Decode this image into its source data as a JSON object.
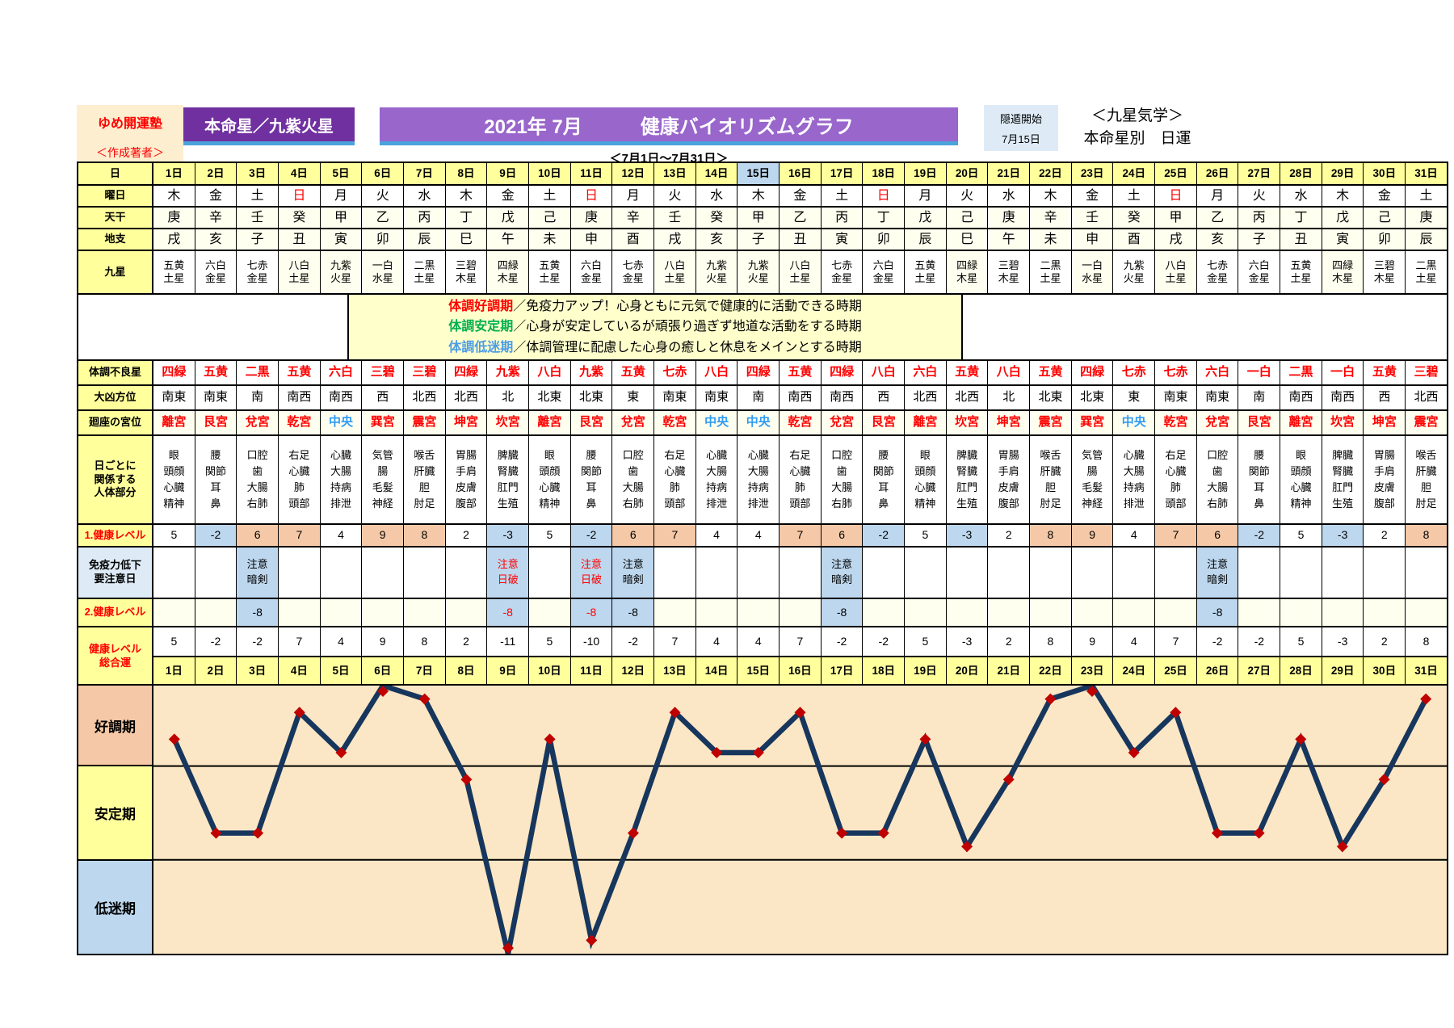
{
  "header": {
    "brand": "ゆめ開運塾",
    "brand_sub": "＜作成著者＞",
    "honmei_box": "本命星／九紫火星",
    "title": "2021年 7月　　　健康バイオリズムグラフ",
    "inton_label": "隠遁開始",
    "inton_date": "7月15日",
    "right_line1": "＜九星気学＞",
    "right_line2": "本命星別　日運",
    "period": "＜7月1日～7月31日＞"
  },
  "row_labels": {
    "day": "日",
    "weekday": "曜日",
    "tenkan": "天干",
    "chishi": "地支",
    "kyusei": "九星",
    "bad_star": "体調不良星",
    "bad_direction": "大凶方位",
    "palace": "廻座の宮位",
    "body": "日ごとに\n関係する\n人体部分",
    "health1": "1.健康レベル",
    "caution": "免疫力低下\n要注意日",
    "health2": "2.健康レベル",
    "total": "健康レベル\n総合運"
  },
  "legend": [
    {
      "term": "体調好調期",
      "color": "#FF0000",
      "desc": "／免疫力アップ！心身ともに元気で健康的に活動できる時期"
    },
    {
      "term": "体調安定期",
      "color": "#00B050",
      "desc": "／心身が安定しているが頑張り過ぎず地道な活動をする時期"
    },
    {
      "term": "体調低迷期",
      "color": "#4D9CE8",
      "desc": "／体調管理に配慮した心身の癒しと休息をメインとする時期"
    }
  ],
  "zones": [
    {
      "label": "好調期",
      "color": "#F5C9A7"
    },
    {
      "label": "安定期",
      "color": "#FFFF9C"
    },
    {
      "label": "低迷期",
      "color": "#BDD7EE"
    }
  ],
  "colors": {
    "yellow": "#FFFF9C",
    "ivory": "#FFFFEF",
    "highlight": "#BDD7EE",
    "salmon": "#F5C9A7",
    "caution_bg": "#BDD7EE",
    "label_blue": "#DEEBF7",
    "red": "#FF0000",
    "center_blue": "#2F9BF5",
    "purple_dark": "#7030A0",
    "purple_light": "#9966CC",
    "strip_blue": "#4BA3DB",
    "line": "#17365D",
    "marker": "#C00000",
    "plot_bg": "#FBE7C5",
    "cream": "#FDEECF",
    "white": "#FFFFFF"
  },
  "days": [
    {
      "n": 1,
      "date": "1日",
      "w": "木",
      "sun": false,
      "stem": "庚",
      "branch": "戌",
      "star": "五黄\n土星",
      "star_hl": false,
      "bad": "四緑",
      "dir": "南東",
      "palace": "離宮",
      "center": false,
      "body": "眼\n頭顔\n心臓\n精神",
      "h1": 5,
      "caution": "",
      "caution_red": false,
      "h2": null,
      "total": 5
    },
    {
      "n": 2,
      "date": "2日",
      "w": "金",
      "sun": false,
      "stem": "辛",
      "branch": "亥",
      "star": "六白\n金星",
      "star_hl": false,
      "bad": "五黄",
      "dir": "南東",
      "palace": "艮宮",
      "center": false,
      "body": "腰\n関節\n耳\n鼻",
      "h1": -2,
      "caution": "",
      "caution_red": false,
      "h2": null,
      "total": -2
    },
    {
      "n": 3,
      "date": "3日",
      "w": "土",
      "sun": false,
      "stem": "壬",
      "branch": "子",
      "star": "七赤\n金星",
      "star_hl": false,
      "bad": "二黒",
      "dir": "南",
      "palace": "兌宮",
      "center": false,
      "body": "口腔\n歯\n大腸\n右肺",
      "h1": 6,
      "caution": "注意\n暗剣",
      "caution_red": false,
      "h2": -8,
      "total": -2
    },
    {
      "n": 4,
      "date": "4日",
      "w": "日",
      "sun": true,
      "stem": "癸",
      "branch": "丑",
      "star": "八白\n土星",
      "star_hl": true,
      "bad": "五黄",
      "dir": "南西",
      "palace": "乾宮",
      "center": false,
      "body": "右足\n心臓\n肺\n頭部",
      "h1": 7,
      "caution": "",
      "caution_red": false,
      "h2": null,
      "total": 7
    },
    {
      "n": 5,
      "date": "5日",
      "w": "月",
      "sun": false,
      "stem": "甲",
      "branch": "寅",
      "star": "九紫\n火星",
      "star_hl": true,
      "bad": "六白",
      "dir": "南西",
      "palace": "中央",
      "center": true,
      "body": "心臓\n大腸\n持病\n排泄",
      "h1": 4,
      "caution": "",
      "caution_red": false,
      "h2": null,
      "total": 4
    },
    {
      "n": 6,
      "date": "6日",
      "w": "火",
      "sun": false,
      "stem": "乙",
      "branch": "卯",
      "star": "一白\n水星",
      "star_hl": true,
      "bad": "三碧",
      "dir": "西",
      "palace": "巽宮",
      "center": false,
      "body": "気管\n腸\n毛髪\n神経",
      "h1": 9,
      "caution": "",
      "caution_red": false,
      "h2": null,
      "total": 9
    },
    {
      "n": 7,
      "date": "7日",
      "w": "水",
      "sun": false,
      "stem": "丙",
      "branch": "辰",
      "star": "二黒\n土星",
      "star_hl": false,
      "bad": "三碧",
      "dir": "北西",
      "palace": "震宮",
      "center": false,
      "body": "喉舌\n肝臓\n胆\n肘足",
      "h1": 8,
      "caution": "",
      "caution_red": false,
      "h2": null,
      "total": 8
    },
    {
      "n": 8,
      "date": "8日",
      "w": "木",
      "sun": false,
      "stem": "丁",
      "branch": "巳",
      "star": "三碧\n木星",
      "star_hl": false,
      "bad": "四緑",
      "dir": "北西",
      "palace": "坤宮",
      "center": false,
      "body": "胃腸\n手肩\n皮膚\n腹部",
      "h1": 2,
      "caution": "",
      "caution_red": false,
      "h2": null,
      "total": 2
    },
    {
      "n": 9,
      "date": "9日",
      "w": "金",
      "sun": false,
      "stem": "戊",
      "branch": "午",
      "star": "四緑\n木星",
      "star_hl": true,
      "bad": "九紫",
      "dir": "北",
      "palace": "坎宮",
      "center": false,
      "body": "脾臓\n腎臓\n肛門\n生殖",
      "h1": -3,
      "caution": "注意\n日破",
      "caution_red": true,
      "h2": -8,
      "total": -11
    },
    {
      "n": 10,
      "date": "10日",
      "w": "土",
      "sun": false,
      "stem": "己",
      "branch": "未",
      "star": "五黄\n土星",
      "star_hl": false,
      "bad": "八白",
      "dir": "北東",
      "palace": "離宮",
      "center": false,
      "body": "眼\n頭顔\n心臓\n精神",
      "h1": 5,
      "caution": "",
      "caution_red": false,
      "h2": null,
      "total": 5
    },
    {
      "n": 11,
      "date": "11日",
      "w": "日",
      "sun": true,
      "stem": "庚",
      "branch": "申",
      "star": "六白\n金星",
      "star_hl": false,
      "bad": "九紫",
      "dir": "北東",
      "palace": "艮宮",
      "center": false,
      "body": "腰\n関節\n耳\n鼻",
      "h1": -2,
      "caution": "注意\n日破",
      "caution_red": true,
      "h2": -8,
      "total": -10
    },
    {
      "n": 12,
      "date": "12日",
      "w": "月",
      "sun": false,
      "stem": "辛",
      "branch": "酉",
      "star": "七赤\n金星",
      "star_hl": false,
      "bad": "五黄",
      "dir": "東",
      "palace": "兌宮",
      "center": false,
      "body": "口腔\n歯\n大腸\n右肺",
      "h1": 6,
      "caution": "注意\n暗剣",
      "caution_red": false,
      "h2": -8,
      "total": -2
    },
    {
      "n": 13,
      "date": "13日",
      "w": "火",
      "sun": false,
      "stem": "壬",
      "branch": "戌",
      "star": "八白\n土星",
      "star_hl": true,
      "bad": "七赤",
      "dir": "南東",
      "palace": "乾宮",
      "center": false,
      "body": "右足\n心臓\n肺\n頭部",
      "h1": 7,
      "caution": "",
      "caution_red": false,
      "h2": null,
      "total": 7
    },
    {
      "n": 14,
      "date": "14日",
      "w": "水",
      "sun": false,
      "stem": "癸",
      "branch": "亥",
      "star": "九紫\n火星",
      "star_hl": true,
      "bad": "八白",
      "dir": "南東",
      "palace": "中央",
      "center": true,
      "body": "心臓\n大腸\n持病\n排泄",
      "h1": 4,
      "caution": "",
      "caution_red": false,
      "h2": null,
      "total": 4
    },
    {
      "n": 15,
      "date": "15日",
      "w": "木",
      "sun": false,
      "stem": "甲",
      "branch": "子",
      "star": "九紫\n火星",
      "star_hl": true,
      "bad": "四緑",
      "dir": "南",
      "palace": "中央",
      "center": true,
      "body": "心臓\n大腸\n持病\n排泄",
      "h1": 4,
      "caution": "",
      "caution_red": false,
      "h2": null,
      "total": 4
    },
    {
      "n": 16,
      "date": "16日",
      "w": "金",
      "sun": false,
      "stem": "乙",
      "branch": "丑",
      "star": "八白\n土星",
      "star_hl": true,
      "bad": "五黄",
      "dir": "南西",
      "palace": "乾宮",
      "center": false,
      "body": "右足\n心臓\n肺\n頭部",
      "h1": 7,
      "caution": "",
      "caution_red": false,
      "h2": null,
      "total": 7
    },
    {
      "n": 17,
      "date": "17日",
      "w": "土",
      "sun": false,
      "stem": "丙",
      "branch": "寅",
      "star": "七赤\n金星",
      "star_hl": false,
      "bad": "四緑",
      "dir": "南西",
      "palace": "兌宮",
      "center": false,
      "body": "口腔\n歯\n大腸\n右肺",
      "h1": 6,
      "caution": "注意\n暗剣",
      "caution_red": false,
      "h2": -8,
      "total": -2
    },
    {
      "n": 18,
      "date": "18日",
      "w": "日",
      "sun": true,
      "stem": "丁",
      "branch": "卯",
      "star": "六白\n金星",
      "star_hl": false,
      "bad": "八白",
      "dir": "西",
      "palace": "艮宮",
      "center": false,
      "body": "腰\n関節\n耳\n鼻",
      "h1": -2,
      "caution": "",
      "caution_red": false,
      "h2": null,
      "total": -2
    },
    {
      "n": 19,
      "date": "19日",
      "w": "月",
      "sun": false,
      "stem": "戊",
      "branch": "辰",
      "star": "五黄\n土星",
      "star_hl": false,
      "bad": "六白",
      "dir": "北西",
      "palace": "離宮",
      "center": false,
      "body": "眼\n頭顔\n心臓\n精神",
      "h1": 5,
      "caution": "",
      "caution_red": false,
      "h2": null,
      "total": 5
    },
    {
      "n": 20,
      "date": "20日",
      "w": "火",
      "sun": false,
      "stem": "己",
      "branch": "巳",
      "star": "四緑\n木星",
      "star_hl": true,
      "bad": "五黄",
      "dir": "北西",
      "palace": "坎宮",
      "center": false,
      "body": "脾臓\n腎臓\n肛門\n生殖",
      "h1": -3,
      "caution": "",
      "caution_red": false,
      "h2": null,
      "total": -3
    },
    {
      "n": 21,
      "date": "21日",
      "w": "水",
      "sun": false,
      "stem": "庚",
      "branch": "午",
      "star": "三碧\n木星",
      "star_hl": false,
      "bad": "八白",
      "dir": "北",
      "palace": "坤宮",
      "center": false,
      "body": "胃腸\n手肩\n皮膚\n腹部",
      "h1": 2,
      "caution": "",
      "caution_red": false,
      "h2": null,
      "total": 2
    },
    {
      "n": 22,
      "date": "22日",
      "w": "木",
      "sun": false,
      "stem": "辛",
      "branch": "未",
      "star": "二黒\n土星",
      "star_hl": false,
      "bad": "五黄",
      "dir": "北東",
      "palace": "震宮",
      "center": false,
      "body": "喉舌\n肝臓\n胆\n肘足",
      "h1": 8,
      "caution": "",
      "caution_red": false,
      "h2": null,
      "total": 8
    },
    {
      "n": 23,
      "date": "23日",
      "w": "金",
      "sun": false,
      "stem": "壬",
      "branch": "申",
      "star": "一白\n水星",
      "star_hl": true,
      "bad": "四緑",
      "dir": "北東",
      "palace": "巽宮",
      "center": false,
      "body": "気管\n腸\n毛髪\n神経",
      "h1": 9,
      "caution": "",
      "caution_red": false,
      "h2": null,
      "total": 9
    },
    {
      "n": 24,
      "date": "24日",
      "w": "土",
      "sun": false,
      "stem": "癸",
      "branch": "酉",
      "star": "九紫\n火星",
      "star_hl": false,
      "bad": "七赤",
      "dir": "東",
      "palace": "中央",
      "center": true,
      "body": "心臓\n大腸\n持病\n排泄",
      "h1": 4,
      "caution": "",
      "caution_red": false,
      "h2": null,
      "total": 4
    },
    {
      "n": 25,
      "date": "25日",
      "w": "日",
      "sun": true,
      "stem": "甲",
      "branch": "戌",
      "star": "八白\n土星",
      "star_hl": true,
      "bad": "七赤",
      "dir": "南東",
      "palace": "乾宮",
      "center": false,
      "body": "右足\n心臓\n肺\n頭部",
      "h1": 7,
      "caution": "",
      "caution_red": false,
      "h2": null,
      "total": 7
    },
    {
      "n": 26,
      "date": "26日",
      "w": "月",
      "sun": false,
      "stem": "乙",
      "branch": "亥",
      "star": "七赤\n金星",
      "star_hl": false,
      "bad": "六白",
      "dir": "南東",
      "palace": "兌宮",
      "center": false,
      "body": "口腔\n歯\n大腸\n右肺",
      "h1": 6,
      "caution": "注意\n暗剣",
      "caution_red": false,
      "h2": -8,
      "total": -2
    },
    {
      "n": 27,
      "date": "27日",
      "w": "火",
      "sun": false,
      "stem": "丙",
      "branch": "子",
      "star": "六白\n金星",
      "star_hl": false,
      "bad": "一白",
      "dir": "南",
      "palace": "艮宮",
      "center": false,
      "body": "腰\n関節\n耳\n鼻",
      "h1": -2,
      "caution": "",
      "caution_red": false,
      "h2": null,
      "total": -2
    },
    {
      "n": 28,
      "date": "28日",
      "w": "水",
      "sun": false,
      "stem": "丁",
      "branch": "丑",
      "star": "五黄\n土星",
      "star_hl": false,
      "bad": "二黒",
      "dir": "南西",
      "palace": "離宮",
      "center": false,
      "body": "眼\n頭顔\n心臓\n精神",
      "h1": 5,
      "caution": "",
      "caution_red": false,
      "h2": null,
      "total": 5
    },
    {
      "n": 29,
      "date": "29日",
      "w": "木",
      "sun": false,
      "stem": "戊",
      "branch": "寅",
      "star": "四緑\n木星",
      "star_hl": true,
      "bad": "一白",
      "dir": "南西",
      "palace": "坎宮",
      "center": false,
      "body": "脾臓\n腎臓\n肛門\n生殖",
      "h1": -3,
      "caution": "",
      "caution_red": false,
      "h2": null,
      "total": -3
    },
    {
      "n": 30,
      "date": "30日",
      "w": "金",
      "sun": false,
      "stem": "己",
      "branch": "卯",
      "star": "三碧\n木星",
      "star_hl": false,
      "bad": "五黄",
      "dir": "西",
      "palace": "坤宮",
      "center": false,
      "body": "胃腸\n手肩\n皮膚\n腹部",
      "h1": 2,
      "caution": "",
      "caution_red": false,
      "h2": null,
      "total": 2
    },
    {
      "n": 31,
      "date": "31日",
      "w": "土",
      "sun": false,
      "stem": "庚",
      "branch": "辰",
      "star": "二黒\n土星",
      "star_hl": false,
      "bad": "三碧",
      "dir": "北西",
      "palace": "震宮",
      "center": false,
      "body": "喉舌\n肝臓\n胆\n肘足",
      "h1": 8,
      "caution": "",
      "caution_red": false,
      "h2": null,
      "total": 8
    }
  ],
  "chart_data": {
    "type": "line",
    "title": "健康バイオリズムグラフ 2021年7月 健康レベル総合運",
    "x": [
      1,
      2,
      3,
      4,
      5,
      6,
      7,
      8,
      9,
      10,
      11,
      12,
      13,
      14,
      15,
      16,
      17,
      18,
      19,
      20,
      21,
      22,
      23,
      24,
      25,
      26,
      27,
      28,
      29,
      30,
      31
    ],
    "series": [
      {
        "name": "健康レベル総合運",
        "values": [
          5,
          -2,
          -2,
          7,
          4,
          9,
          8,
          2,
          -11,
          5,
          -10,
          -2,
          7,
          4,
          4,
          7,
          -2,
          -2,
          5,
          -3,
          2,
          8,
          9,
          4,
          7,
          -2,
          -2,
          5,
          -3,
          2,
          8
        ]
      }
    ],
    "ylim": [
      -11,
      9
    ],
    "zone_boundaries": [
      3,
      -4
    ],
    "zone_labels": [
      "好調期",
      "安定期",
      "低迷期"
    ],
    "grid": "zone-bands-only",
    "legend_position": "none",
    "line_color": "#17365D",
    "marker_color": "#C00000",
    "plot_bg": "#FBE7C5"
  }
}
